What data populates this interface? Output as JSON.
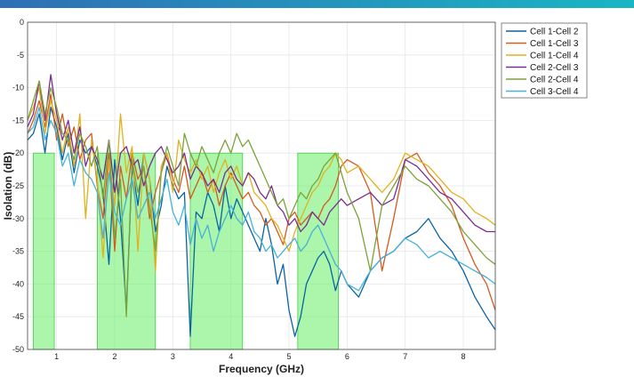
{
  "colors": {
    "bar_left": "#2f6fb5",
    "bar_right": "#19b6c4",
    "band_fill": "#66ee66",
    "band_stroke": "#44cc44",
    "grid": "#e6e6e6"
  },
  "chart_data": {
    "type": "line",
    "title": "",
    "xlabel": "Frequency (GHz)",
    "ylabel": "Isolation (dB)",
    "xlim": [
      0.5,
      8.55
    ],
    "ylim": [
      -50,
      0
    ],
    "xticks": [
      1,
      2,
      3,
      4,
      5,
      6,
      7,
      8
    ],
    "yticks": [
      0,
      -5,
      -10,
      -15,
      -20,
      -25,
      -30,
      -35,
      -40,
      -45,
      -50
    ],
    "grid": true,
    "legend_position": "top-right",
    "bands": [
      {
        "x0": 0.6,
        "x1": 0.96,
        "top": -20
      },
      {
        "x0": 1.7,
        "x1": 2.7,
        "top": -20
      },
      {
        "x0": 3.3,
        "x1": 4.2,
        "top": -20
      },
      {
        "x0": 5.15,
        "x1": 5.85,
        "top": -20
      }
    ],
    "series": [
      {
        "name": "Cell 1-Cell 2",
        "color": "#0a64a4",
        "x": [
          0.5,
          0.6,
          0.7,
          0.8,
          0.9,
          1.0,
          1.1,
          1.2,
          1.3,
          1.4,
          1.5,
          1.6,
          1.7,
          1.8,
          1.9,
          2.0,
          2.1,
          2.2,
          2.3,
          2.4,
          2.5,
          2.6,
          2.7,
          2.8,
          2.9,
          3.0,
          3.1,
          3.2,
          3.3,
          3.4,
          3.5,
          3.6,
          3.7,
          3.8,
          3.9,
          4.0,
          4.1,
          4.2,
          4.3,
          4.4,
          4.5,
          4.6,
          4.7,
          4.8,
          4.9,
          5.0,
          5.1,
          5.2,
          5.3,
          5.4,
          5.5,
          5.6,
          5.7,
          5.8,
          5.9,
          6.0,
          6.2,
          6.4,
          6.6,
          6.8,
          7.0,
          7.2,
          7.4,
          7.6,
          7.8,
          8.0,
          8.2,
          8.4,
          8.55
        ],
        "y": [
          -18,
          -17,
          -14,
          -20,
          -13,
          -16,
          -21,
          -17,
          -23,
          -18,
          -20,
          -19,
          -22,
          -26,
          -37,
          -21,
          -30,
          -44,
          -22,
          -28,
          -20,
          -24,
          -32,
          -28,
          -22,
          -25,
          -27,
          -26,
          -48,
          -29,
          -30,
          -26,
          -28,
          -32,
          -25,
          -30,
          -27,
          -29,
          -31,
          -33,
          -35,
          -30,
          -34,
          -40,
          -37,
          -44,
          -48,
          -45,
          -40,
          -38,
          -36,
          -35,
          -37,
          -41,
          -38,
          -40,
          -42,
          -38,
          -36,
          -35,
          -33,
          -32,
          -30,
          -33,
          -35,
          -38,
          -42,
          -45,
          -47
        ]
      },
      {
        "name": "Cell 1-Cell 3",
        "color": "#d45a1e",
        "x": [
          0.5,
          0.6,
          0.7,
          0.8,
          0.9,
          1.0,
          1.1,
          1.2,
          1.3,
          1.4,
          1.5,
          1.6,
          1.7,
          1.8,
          1.9,
          2.0,
          2.1,
          2.2,
          2.3,
          2.4,
          2.5,
          2.6,
          2.7,
          2.8,
          2.9,
          3.0,
          3.1,
          3.2,
          3.3,
          3.4,
          3.5,
          3.6,
          3.7,
          3.8,
          3.9,
          4.0,
          4.1,
          4.2,
          4.3,
          4.4,
          4.5,
          4.6,
          4.7,
          4.8,
          4.9,
          5.0,
          5.1,
          5.2,
          5.3,
          5.4,
          5.5,
          5.6,
          5.7,
          5.8,
          5.9,
          6.0,
          6.2,
          6.4,
          6.6,
          6.8,
          7.0,
          7.2,
          7.4,
          7.6,
          7.8,
          8.0,
          8.2,
          8.4,
          8.55
        ],
        "y": [
          -17,
          -15,
          -12,
          -16,
          -11,
          -18,
          -14,
          -19,
          -16,
          -21,
          -18,
          -17,
          -25,
          -30,
          -20,
          -35,
          -22,
          -27,
          -20,
          -24,
          -22,
          -30,
          -26,
          -23,
          -20,
          -24,
          -26,
          -22,
          -27,
          -25,
          -23,
          -26,
          -24,
          -28,
          -25,
          -23,
          -25,
          -27,
          -26,
          -28,
          -29,
          -31,
          -30,
          -32,
          -34,
          -30,
          -29,
          -31,
          -30,
          -29,
          -30,
          -28,
          -27,
          -25,
          -22,
          -21,
          -22,
          -26,
          -38,
          -30,
          -21,
          -20,
          -23,
          -25,
          -28,
          -33,
          -37,
          -40,
          -44
        ]
      },
      {
        "name": "Cell 1-Cell 4",
        "color": "#e1b21f",
        "x": [
          0.5,
          0.6,
          0.7,
          0.8,
          0.9,
          1.0,
          1.1,
          1.2,
          1.3,
          1.4,
          1.5,
          1.6,
          1.7,
          1.8,
          1.9,
          2.0,
          2.1,
          2.2,
          2.3,
          2.4,
          2.5,
          2.6,
          2.7,
          2.8,
          2.9,
          3.0,
          3.1,
          3.2,
          3.3,
          3.4,
          3.5,
          3.6,
          3.7,
          3.8,
          3.9,
          4.0,
          4.1,
          4.2,
          4.3,
          4.4,
          4.5,
          4.6,
          4.7,
          4.8,
          4.9,
          5.0,
          5.1,
          5.2,
          5.3,
          5.4,
          5.5,
          5.6,
          5.7,
          5.8,
          5.9,
          6.0,
          6.2,
          6.4,
          6.6,
          6.8,
          7.0,
          7.2,
          7.4,
          7.6,
          7.8,
          8.0,
          8.2,
          8.4,
          8.55
        ],
        "y": [
          -15,
          -13,
          -10,
          -17,
          -12,
          -15,
          -20,
          -16,
          -22,
          -14,
          -30,
          -18,
          -24,
          -36,
          -21,
          -28,
          -14,
          -23,
          -19,
          -35,
          -20,
          -24,
          -38,
          -22,
          -20,
          -26,
          -18,
          -21,
          -23,
          -21,
          -24,
          -22,
          -26,
          -23,
          -21,
          -24,
          -22,
          -25,
          -23,
          -26,
          -27,
          -28,
          -30,
          -31,
          -33,
          -35,
          -32,
          -30,
          -28,
          -26,
          -25,
          -23,
          -22,
          -20,
          -21,
          -23,
          -22,
          -24,
          -26,
          -24,
          -20,
          -21,
          -22,
          -24,
          -26,
          -27,
          -29,
          -30,
          -31
        ]
      },
      {
        "name": "Cell 2-Cell 3",
        "color": "#7b2d8e",
        "x": [
          0.5,
          0.6,
          0.7,
          0.8,
          0.9,
          1.0,
          1.1,
          1.2,
          1.3,
          1.4,
          1.5,
          1.6,
          1.7,
          1.8,
          1.9,
          2.0,
          2.1,
          2.2,
          2.3,
          2.4,
          2.5,
          2.6,
          2.7,
          2.8,
          2.9,
          3.0,
          3.1,
          3.2,
          3.3,
          3.4,
          3.5,
          3.6,
          3.7,
          3.8,
          3.9,
          4.0,
          4.1,
          4.2,
          4.3,
          4.4,
          4.5,
          4.6,
          4.7,
          4.8,
          4.9,
          5.0,
          5.1,
          5.2,
          5.3,
          5.4,
          5.5,
          5.6,
          5.7,
          5.8,
          5.9,
          6.0,
          6.2,
          6.4,
          6.6,
          6.8,
          7.0,
          7.2,
          7.4,
          7.6,
          7.8,
          8.0,
          8.2,
          8.4,
          8.55
        ],
        "y": [
          -16,
          -14,
          -9,
          -15,
          -8,
          -14,
          -18,
          -15,
          -20,
          -16,
          -22,
          -19,
          -21,
          -24,
          -18,
          -26,
          -20,
          -19,
          -22,
          -21,
          -25,
          -22,
          -20,
          -19,
          -21,
          -23,
          -22,
          -20,
          -24,
          -22,
          -23,
          -25,
          -24,
          -26,
          -23,
          -22,
          -24,
          -25,
          -23,
          -24,
          -26,
          -27,
          -25,
          -28,
          -29,
          -31,
          -30,
          -32,
          -31,
          -29,
          -30,
          -31,
          -29,
          -28,
          -27,
          -28,
          -27,
          -26,
          -28,
          -27,
          -21,
          -22,
          -24,
          -26,
          -27,
          -29,
          -31,
          -32,
          -32
        ]
      },
      {
        "name": "Cell 2-Cell 4",
        "color": "#7ba33a",
        "x": [
          0.5,
          0.6,
          0.7,
          0.8,
          0.9,
          1.0,
          1.1,
          1.2,
          1.3,
          1.4,
          1.5,
          1.6,
          1.7,
          1.8,
          1.9,
          2.0,
          2.1,
          2.2,
          2.3,
          2.4,
          2.5,
          2.6,
          2.7,
          2.8,
          2.9,
          3.0,
          3.1,
          3.2,
          3.3,
          3.4,
          3.5,
          3.6,
          3.7,
          3.8,
          3.9,
          4.0,
          4.1,
          4.2,
          4.3,
          4.4,
          4.5,
          4.6,
          4.7,
          4.8,
          4.9,
          5.0,
          5.1,
          5.2,
          5.3,
          5.4,
          5.5,
          5.6,
          5.7,
          5.8,
          5.9,
          6.0,
          6.2,
          6.4,
          6.6,
          6.8,
          7.0,
          7.2,
          7.4,
          7.6,
          7.8,
          8.0,
          8.2,
          8.4,
          8.55
        ],
        "y": [
          -15,
          -12,
          -9,
          -14,
          -10,
          -13,
          -17,
          -18,
          -21,
          -17,
          -19,
          -22,
          -19,
          -27,
          -18,
          -33,
          -24,
          -45,
          -21,
          -26,
          -22,
          -28,
          -35,
          -23,
          -19,
          -22,
          -25,
          -17,
          -20,
          -22,
          -19,
          -21,
          -23,
          -20,
          -18,
          -20,
          -17,
          -19,
          -18,
          -20,
          -22,
          -24,
          -26,
          -28,
          -27,
          -30,
          -28,
          -26,
          -27,
          -25,
          -24,
          -22,
          -21,
          -20,
          -23,
          -26,
          -30,
          -38,
          -28,
          -25,
          -22,
          -24,
          -25,
          -27,
          -29,
          -32,
          -34,
          -36,
          -37
        ]
      },
      {
        "name": "Cell 3-Cell 4",
        "color": "#45b2d9",
        "x": [
          0.5,
          0.6,
          0.7,
          0.8,
          0.9,
          1.0,
          1.1,
          1.2,
          1.3,
          1.4,
          1.5,
          1.6,
          1.7,
          1.8,
          1.9,
          2.0,
          2.1,
          2.2,
          2.3,
          2.4,
          2.5,
          2.6,
          2.7,
          2.8,
          2.9,
          3.0,
          3.1,
          3.2,
          3.3,
          3.4,
          3.5,
          3.6,
          3.7,
          3.8,
          3.9,
          4.0,
          4.1,
          4.2,
          4.3,
          4.4,
          4.5,
          4.6,
          4.7,
          4.8,
          4.9,
          5.0,
          5.1,
          5.2,
          5.3,
          5.4,
          5.5,
          5.6,
          5.7,
          5.8,
          5.9,
          6.0,
          6.2,
          6.4,
          6.6,
          6.8,
          7.0,
          7.2,
          7.4,
          7.6,
          7.8,
          8.0,
          8.2,
          8.4,
          8.55
        ],
        "y": [
          -17,
          -16,
          -13,
          -18,
          -15,
          -17,
          -22,
          -20,
          -25,
          -21,
          -23,
          -24,
          -26,
          -33,
          -23,
          -29,
          -31,
          -27,
          -24,
          -30,
          -28,
          -26,
          -30,
          -27,
          -24,
          -29,
          -31,
          -28,
          -34,
          -30,
          -33,
          -31,
          -35,
          -32,
          -30,
          -28,
          -30,
          -31,
          -29,
          -32,
          -33,
          -35,
          -34,
          -36,
          -35,
          -34,
          -33,
          -35,
          -34,
          -32,
          -31,
          -33,
          -35,
          -37,
          -38,
          -40,
          -41,
          -38,
          -36,
          -35,
          -33,
          -34,
          -36,
          -35,
          -36,
          -37,
          -38,
          -39,
          -40
        ]
      }
    ]
  }
}
